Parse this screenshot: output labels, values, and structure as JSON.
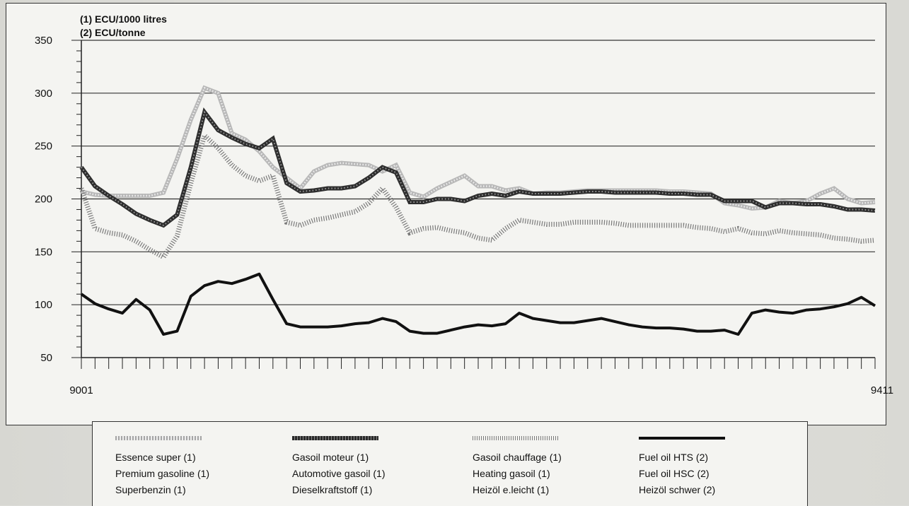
{
  "units": {
    "line1": "(1) ECU/1000 litres",
    "line2": "(2) ECU/tonne"
  },
  "legend": [
    {
      "labels": [
        "Essence super (1)",
        "Premium gasoline (1)",
        "Superbenzin (1)"
      ],
      "style": "dotted-light",
      "color": "#9a9a9a"
    },
    {
      "labels": [
        "Gasoil moteur (1)",
        "Automotive gasoil (1)",
        "Dieselkraftstoff (1)"
      ],
      "style": "dotted-dark",
      "color": "#3a3a3a"
    },
    {
      "labels": [
        "Gasoil chauffage (1)",
        "Heating gasoil (1)",
        "Heizöl e.leicht (1)"
      ],
      "style": "hatched",
      "color": "#6a6a6a"
    },
    {
      "labels": [
        "Fuel oil HTS (2)",
        "Fuel oil HSC (2)",
        "Heizöl schwer (2)"
      ],
      "style": "solid",
      "color": "#111111"
    }
  ],
  "chart_data": {
    "type": "line",
    "ylim": [
      50,
      350
    ],
    "yticks": [
      50,
      100,
      150,
      200,
      250,
      300,
      350
    ],
    "x_start_label": "9001",
    "x_end_label": "9411",
    "n_months": 59,
    "grid": true,
    "series": [
      {
        "name": "Essence super (1)",
        "color": "#9a9a9a",
        "style": "dotted-light",
        "values": [
          207,
          204,
          203,
          203,
          203,
          203,
          206,
          238,
          275,
          305,
          300,
          262,
          256,
          245,
          230,
          220,
          210,
          226,
          232,
          234,
          233,
          232,
          226,
          232,
          206,
          202,
          210,
          216,
          222,
          212,
          212,
          208,
          210,
          205,
          206,
          206,
          207,
          208,
          208,
          208,
          208,
          208,
          208,
          207,
          207,
          206,
          205,
          196,
          194,
          191,
          192,
          198,
          196,
          198,
          205,
          210,
          200,
          196,
          197
        ]
      },
      {
        "name": "Gasoil moteur (1)",
        "color": "#3a3a3a",
        "style": "dotted-dark",
        "values": [
          230,
          212,
          203,
          195,
          186,
          180,
          175,
          185,
          230,
          282,
          265,
          258,
          252,
          248,
          257,
          215,
          207,
          208,
          210,
          210,
          212,
          220,
          230,
          225,
          197,
          197,
          200,
          200,
          198,
          203,
          205,
          203,
          207,
          205,
          205,
          205,
          206,
          207,
          207,
          206,
          206,
          206,
          206,
          205,
          205,
          204,
          204,
          198,
          198,
          198,
          192,
          196,
          196,
          195,
          195,
          193,
          190,
          190,
          189
        ]
      },
      {
        "name": "Gasoil chauffage (1)",
        "color": "#6a6a6a",
        "style": "hatched",
        "values": [
          210,
          172,
          168,
          166,
          160,
          152,
          145,
          165,
          215,
          260,
          248,
          232,
          222,
          217,
          222,
          178,
          175,
          180,
          182,
          185,
          188,
          196,
          210,
          192,
          168,
          172,
          173,
          170,
          168,
          163,
          161,
          172,
          180,
          178,
          176,
          176,
          178,
          178,
          178,
          177,
          175,
          175,
          175,
          175,
          175,
          173,
          172,
          169,
          172,
          168,
          167,
          170,
          168,
          167,
          166,
          163,
          162,
          160,
          161
        ]
      },
      {
        "name": "Fuel oil HTS (2)",
        "color": "#111111",
        "style": "solid",
        "values": [
          110,
          101,
          96,
          92,
          105,
          95,
          72,
          75,
          108,
          118,
          122,
          120,
          124,
          129,
          105,
          82,
          79,
          79,
          79,
          80,
          82,
          83,
          87,
          84,
          75,
          73,
          73,
          76,
          79,
          81,
          80,
          82,
          92,
          87,
          85,
          83,
          83,
          85,
          87,
          84,
          81,
          79,
          78,
          78,
          77,
          75,
          75,
          76,
          72,
          92,
          95,
          93,
          92,
          95,
          96,
          98,
          101,
          107,
          99
        ]
      }
    ]
  }
}
